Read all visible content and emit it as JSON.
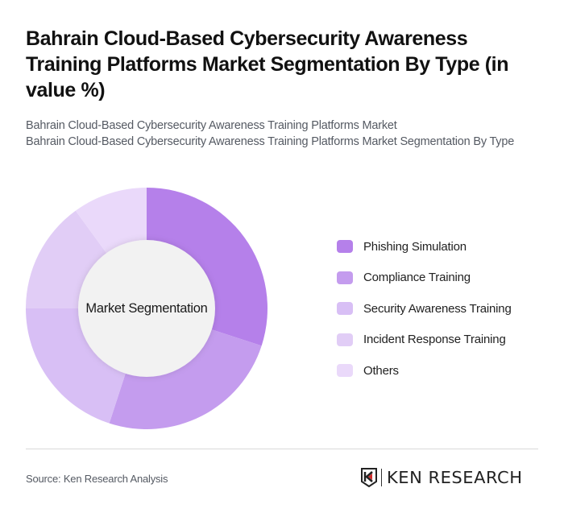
{
  "header": {
    "title": "Bahrain Cloud-Based Cybersecurity Awareness Training Platforms Market Segmentation By Type (in value %)",
    "subtitle_line1": "Bahrain Cloud-Based Cybersecurity Awareness Training Platforms Market",
    "subtitle_line2": "Bahrain Cloud-Based Cybersecurity Awareness Training Platforms Market Segmentation By Type"
  },
  "chart_data": {
    "type": "pie",
    "subtype": "donut",
    "title": "Bahrain Cloud-Based Cybersecurity Awareness Training Platforms Market Segmentation By Type (in value %)",
    "center_label": "Market Segmentation",
    "categories": [
      "Phishing Simulation",
      "Compliance Training",
      "Security Awareness Training",
      "Incident Response Training",
      "Others"
    ],
    "values": [
      30,
      25,
      20,
      15,
      10
    ],
    "colors": [
      "#b580ea",
      "#c49cee",
      "#d8bff5",
      "#e1cdf6",
      "#ead9fa"
    ],
    "legend_position": "right",
    "unit": "%"
  },
  "legend": {
    "items": [
      {
        "label": "Phishing Simulation",
        "color": "#b580ea"
      },
      {
        "label": "Compliance Training",
        "color": "#c49cee"
      },
      {
        "label": "Security Awareness Training",
        "color": "#d8bff5"
      },
      {
        "label": "Incident Response Training",
        "color": "#e1cdf6"
      },
      {
        "label": "Others",
        "color": "#ead9fa"
      }
    ]
  },
  "footer": {
    "source": "Source: Ken Research Analysis",
    "logo_text": "KEN RESEARCH"
  }
}
